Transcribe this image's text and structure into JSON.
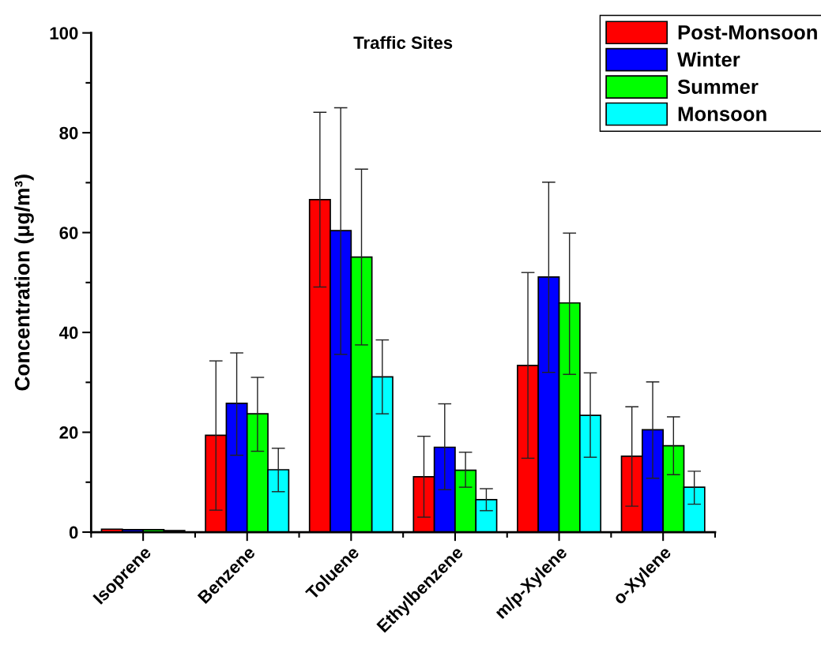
{
  "chart_data": {
    "type": "bar",
    "title": "Traffic Sites",
    "ylabel": "Concentration (μg/m³)",
    "categories": [
      "Isoprene",
      "Benzene",
      "Toluene",
      "Ethylbenzene",
      "m/p-Xylene",
      "o-Xylene"
    ],
    "series": [
      {
        "name": "Post-Monsoon",
        "color": "#ff0000",
        "values": [
          0.6,
          19.4,
          66.6,
          11.1,
          33.4,
          15.2
        ],
        "errors": [
          null,
          [
            4.4,
            34.3
          ],
          [
            49.1,
            84.1
          ],
          [
            3.0,
            19.2
          ],
          [
            14.8,
            52.0
          ],
          [
            5.2,
            25.1
          ]
        ]
      },
      {
        "name": "Winter",
        "color": "#0000ff",
        "values": [
          0.5,
          25.8,
          60.4,
          17.0,
          51.1,
          20.5
        ],
        "errors": [
          null,
          [
            15.4,
            35.9
          ],
          [
            35.6,
            85.0
          ],
          [
            8.5,
            25.7
          ],
          [
            32.0,
            70.1
          ],
          [
            10.8,
            30.1
          ]
        ]
      },
      {
        "name": "Summer",
        "color": "#00ff00",
        "values": [
          0.5,
          23.7,
          55.1,
          12.4,
          45.9,
          17.3
        ],
        "errors": [
          null,
          [
            16.2,
            31.0
          ],
          [
            37.5,
            72.7
          ],
          [
            9.0,
            16.0
          ],
          [
            31.6,
            59.9
          ],
          [
            11.5,
            23.1
          ]
        ]
      },
      {
        "name": "Monsoon",
        "color": "#00ffff",
        "values": [
          0.3,
          12.5,
          31.1,
          6.5,
          23.4,
          9.0
        ],
        "errors": [
          null,
          [
            8.1,
            16.8
          ],
          [
            23.7,
            38.5
          ],
          [
            4.3,
            8.7
          ],
          [
            15.0,
            31.9
          ],
          [
            5.6,
            12.2
          ]
        ]
      }
    ],
    "ylim": [
      0,
      100
    ],
    "yticks": [
      0,
      20,
      40,
      60,
      80,
      100
    ],
    "grid": false,
    "legend": "top right"
  }
}
